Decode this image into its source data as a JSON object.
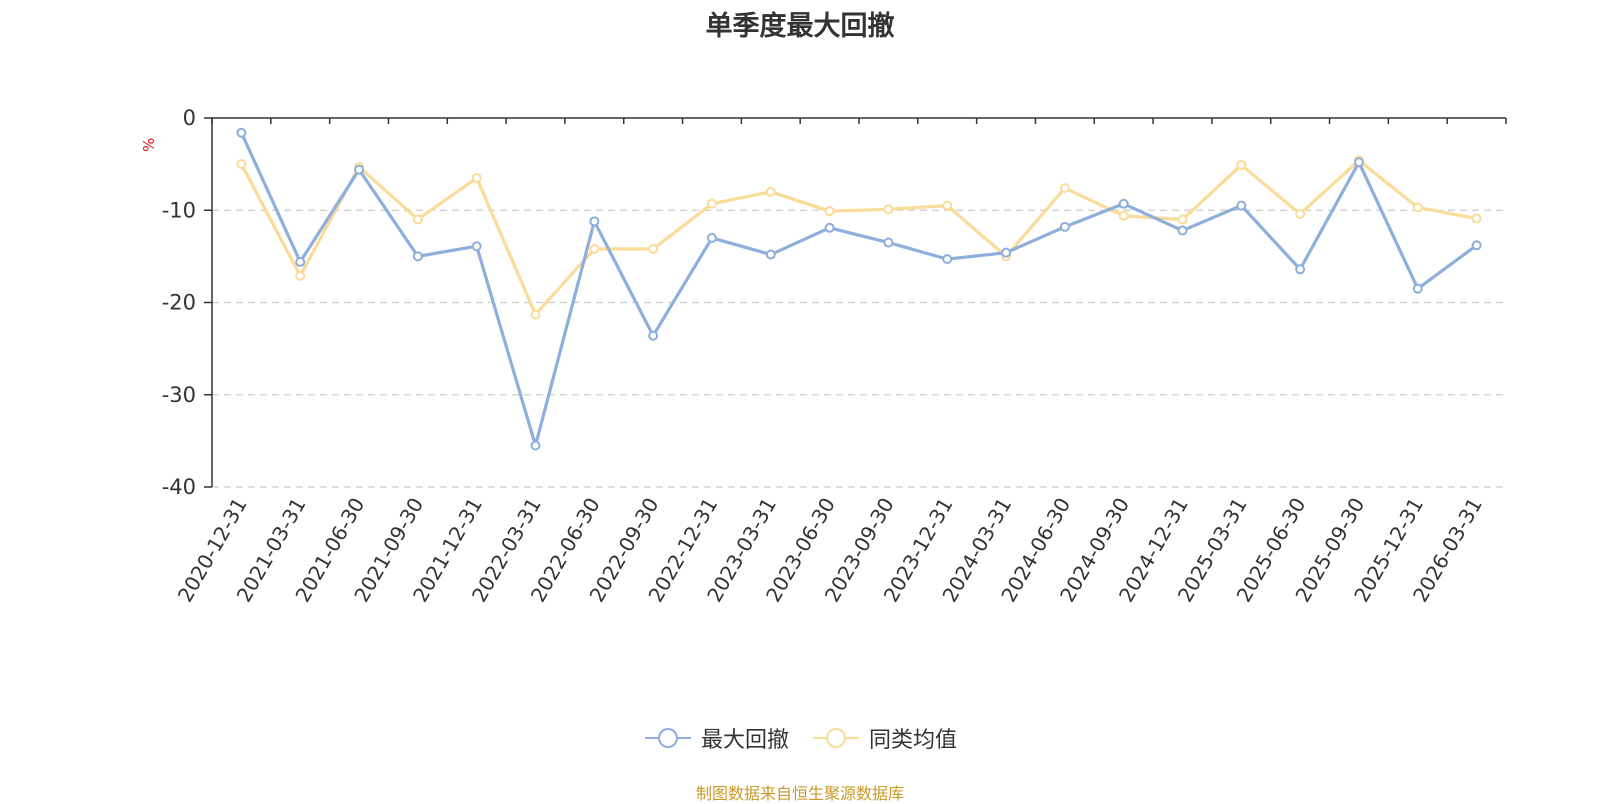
{
  "chart_data": {
    "type": "line",
    "title": "单季度最大回撤",
    "ylabel": "%",
    "ylim": [
      -40,
      0
    ],
    "yticks": [
      0,
      -10,
      -20,
      -30,
      -40
    ],
    "grid": true,
    "legend_position": "bottom",
    "categories": [
      "2020-12-31",
      "2021-03-31",
      "2021-06-30",
      "2021-09-30",
      "2021-12-31",
      "2022-03-31",
      "2022-06-30",
      "2022-09-30",
      "2022-12-31",
      "2023-03-31",
      "2023-06-30",
      "2023-09-30",
      "2023-12-31",
      "2024-03-31",
      "2024-06-30",
      "2024-09-30",
      "2024-12-31",
      "2025-03-31",
      "2025-06-30",
      "2025-09-30",
      "2025-12-31",
      "2026-03-31"
    ],
    "series": [
      {
        "name": "最大回撤",
        "color": "#8eaedc",
        "values": [
          -1.6,
          -15.6,
          -5.6,
          -15.0,
          -13.9,
          -35.5,
          -11.2,
          -23.6,
          -13.0,
          -14.8,
          -11.9,
          -13.5,
          -15.3,
          -14.6,
          -11.8,
          -9.3,
          -12.2,
          -9.5,
          -16.4,
          -4.8,
          -18.5,
          -13.8
        ]
      },
      {
        "name": "同类均值",
        "color": "#fbdb98",
        "values": [
          -5.0,
          -17.1,
          -5.3,
          -11.0,
          -6.5,
          -21.3,
          -14.2,
          -14.2,
          -9.3,
          -8.0,
          -10.1,
          -9.9,
          -9.5,
          -15.0,
          -7.6,
          -10.6,
          -11.0,
          -5.1,
          -10.4,
          -4.6,
          -9.7,
          -10.9
        ]
      }
    ]
  },
  "source_text": "制图数据来自恒生聚源数据库",
  "colors": {
    "unit": "#ee1111",
    "source": "#c89a28",
    "axis": "#333333",
    "grid": "#cccccc"
  }
}
